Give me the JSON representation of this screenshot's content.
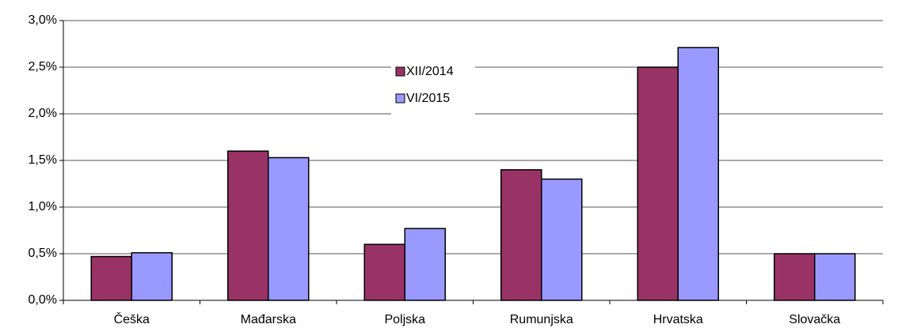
{
  "chart_data": {
    "type": "bar",
    "categories": [
      "Češka",
      "Mađarska",
      "Poljska",
      "Rumunjska",
      "Hrvatska",
      "Slovačka"
    ],
    "series": [
      {
        "name": "XII/2014",
        "color": "#993366",
        "values": [
          0.47,
          1.6,
          0.6,
          1.4,
          2.5,
          0.5
        ]
      },
      {
        "name": "VI/2015",
        "color": "#9999ff",
        "values": [
          0.51,
          1.53,
          0.77,
          1.3,
          2.71,
          0.5
        ]
      }
    ],
    "ylim": [
      0,
      3
    ],
    "yticks": [
      {
        "value": 0,
        "label": "0,0%"
      },
      {
        "value": 0.5,
        "label": "0,5%"
      },
      {
        "value": 1,
        "label": "1,0%"
      },
      {
        "value": 1.5,
        "label": "1,5%"
      },
      {
        "value": 2,
        "label": "2,0%"
      },
      {
        "value": 2.5,
        "label": "2,5%"
      },
      {
        "value": 3,
        "label": "3,0%"
      }
    ],
    "grid": true
  }
}
